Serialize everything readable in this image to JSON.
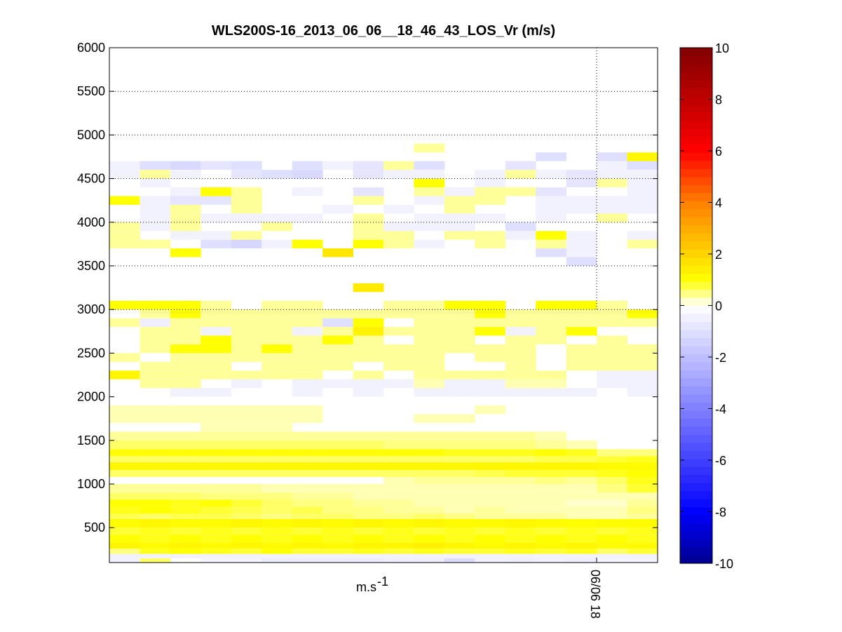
{
  "chart_data": {
    "type": "heatmap",
    "title": "WLS200S-16_2013_06_06__18_46_43_LOS_Vr (m/s)",
    "xlabel": "m.s",
    "xlabel_sup": "-1",
    "ylabel": "",
    "ylim": [
      100,
      6000
    ],
    "yticks": [
      500,
      1000,
      1500,
      2000,
      2500,
      3000,
      3500,
      4000,
      4500,
      5000,
      5500,
      6000
    ],
    "xtick_label": "06/06 18",
    "columns": 18,
    "colorbar": {
      "range": [
        -10,
        10
      ],
      "ticks": [
        -10,
        -8,
        -6,
        -4,
        -2,
        0,
        2,
        4,
        6,
        8,
        10
      ],
      "colors": [
        "#00008f",
        "#0000ff",
        "#ffffff",
        "#ffff00",
        "#ff8000",
        "#ff0000",
        "#800000"
      ]
    },
    "bands": [
      {
        "y0": 100,
        "y1": 150,
        "values": [
          -0.4,
          0.6,
          0,
          -0.3,
          -0.3,
          -0.6,
          -0.6,
          -0.6,
          -0.6,
          -0.5,
          -0.5,
          -1.1,
          -0.4,
          -0.5,
          -0.4,
          -0.5,
          -0.3,
          -0.3
        ]
      },
      {
        "y0": 150,
        "y1": 200,
        "values": [
          -0.4,
          -0.4,
          -0.4,
          -0.4,
          -0.4,
          -0.4,
          -0.4,
          -0.4,
          -0.4,
          -0.4,
          -0.4,
          -0.4,
          -0.4,
          -0.4,
          -0.4,
          -0.4,
          -0.4,
          -0.4
        ]
      },
      {
        "y0": 200,
        "y1": 260,
        "values": [
          0.5,
          0.9,
          1.0,
          0.9,
          0.8,
          1.0,
          0.8,
          0.8,
          0.9,
          0.8,
          0.9,
          0.8,
          0.8,
          0.9,
          0.8,
          0.9,
          0.6,
          0.8
        ]
      },
      {
        "y0": 260,
        "y1": 330,
        "values": [
          1.2,
          1.1,
          1.2,
          1.1,
          1.2,
          1.1,
          1.2,
          1.1,
          1.2,
          1.2,
          1.3,
          1.2,
          1.1,
          1.2,
          1.1,
          1.2,
          1.1,
          1.1
        ]
      },
      {
        "y0": 330,
        "y1": 420,
        "values": [
          1.0,
          0.9,
          1.0,
          0.9,
          1.0,
          0.9,
          1.0,
          0.9,
          1.0,
          0.9,
          1.0,
          0.9,
          1.0,
          0.9,
          1.0,
          0.9,
          1.0,
          0.9
        ]
      },
      {
        "y0": 420,
        "y1": 500,
        "values": [
          0.8,
          0.9,
          0.8,
          0.9,
          0.8,
          0.9,
          0.8,
          0.9,
          0.8,
          0.9,
          0.8,
          0.9,
          0.8,
          0.9,
          0.8,
          0.9,
          0.8,
          0.9
        ]
      },
      {
        "y0": 500,
        "y1": 600,
        "values": [
          1.1,
          1.2,
          1.1,
          1.1,
          1.2,
          1.1,
          1.2,
          1.1,
          1.2,
          1.1,
          1.2,
          1.1,
          1.1,
          1.2,
          1.1,
          1.0,
          1.1,
          1.1
        ]
      },
      {
        "y0": 600,
        "y1": 660,
        "values": [
          0.7,
          0.6,
          0.7,
          0.7,
          0.6,
          0.5,
          0.6,
          0.6,
          0.5,
          0.5,
          0.6,
          0.5,
          0.4,
          0.4,
          0.4,
          0.3,
          0.3,
          0.4
        ]
      },
      {
        "y0": 660,
        "y1": 740,
        "values": [
          0.9,
          1.0,
          0.9,
          0.8,
          0.7,
          0.6,
          0.7,
          0.5,
          0.5,
          0.4,
          0.4,
          0.3,
          0.4,
          0.3,
          0.3,
          0.3,
          0.3,
          0.5
        ]
      },
      {
        "y0": 740,
        "y1": 820,
        "values": [
          1.0,
          1.0,
          0.9,
          1.0,
          0.8,
          0.6,
          0.5,
          0.5,
          0.4,
          0.4,
          0.3,
          0.3,
          0.3,
          0.3,
          0.3,
          0.2,
          0.2,
          0.4
        ]
      },
      {
        "y0": 820,
        "y1": 900,
        "values": [
          0.6,
          0.6,
          0.6,
          0.5,
          0.5,
          0.5,
          0.4,
          0.4,
          0.3,
          0.3,
          0.3,
          0.3,
          0.3,
          0.3,
          0.3,
          0.3,
          0.3,
          0.3
        ]
      },
      {
        "y0": 900,
        "y1": 1000,
        "values": [
          0.4,
          0.4,
          0.4,
          0.4,
          0.4,
          0.3,
          0.3,
          0.3,
          0.3,
          0.3,
          0.3,
          0.3,
          0.3,
          0.3,
          0.3,
          0.3,
          0.5,
          0.8
        ]
      },
      {
        "y0": 1000,
        "y1": 1080,
        "values": [
          0,
          0,
          0,
          0,
          0,
          0,
          0,
          0,
          0,
          0.3,
          0.4,
          0.4,
          0.4,
          0.4,
          0.5,
          0.4,
          0.6,
          0.9
        ]
      },
      {
        "y0": 1080,
        "y1": 1160,
        "values": [
          0.6,
          0.6,
          0.6,
          0.6,
          0.6,
          0.6,
          0.6,
          0.6,
          0.6,
          0.6,
          0.6,
          0.6,
          0.7,
          0.8,
          0.8,
          0.8,
          0.9,
          1.0
        ]
      },
      {
        "y0": 1160,
        "y1": 1250,
        "values": [
          1.2,
          1.2,
          1.2,
          1.2,
          1.2,
          1.2,
          1.2,
          1.2,
          1.2,
          1.2,
          1.2,
          1.2,
          1.2,
          1.2,
          1.2,
          1.2,
          1.1,
          1.1
        ]
      },
      {
        "y0": 1250,
        "y1": 1320,
        "values": [
          0.6,
          0.6,
          0.6,
          0.6,
          0.6,
          0.6,
          0.6,
          0.6,
          0.6,
          0.6,
          0.6,
          0.6,
          0.6,
          0.6,
          0.7,
          0.7,
          0.8,
          0.9
        ]
      },
      {
        "y0": 1320,
        "y1": 1400,
        "values": [
          1.0,
          1.0,
          1.0,
          1.0,
          1.0,
          1.0,
          1.0,
          1.0,
          1.0,
          1.0,
          1.0,
          0.9,
          0.9,
          0.9,
          1.0,
          0.9,
          0.5,
          0.5
        ]
      },
      {
        "y0": 1400,
        "y1": 1500,
        "values": [
          0.6,
          0.6,
          0.6,
          0.6,
          0.6,
          0.6,
          0.6,
          0.6,
          0.6,
          0.5,
          0.5,
          0.5,
          0.5,
          0.5,
          0.4,
          0.3,
          0,
          0
        ]
      },
      {
        "y0": 1500,
        "y1": 1600,
        "values": [
          0.4,
          0.4,
          0.4,
          0.4,
          0.4,
          0.4,
          0.4,
          0.4,
          0.4,
          0.4,
          0.4,
          0.4,
          0.4,
          0.4,
          0.3,
          0,
          0,
          0
        ]
      },
      {
        "y0": 1600,
        "y1": 1700,
        "values": [
          0,
          0,
          0,
          0.3,
          0.3,
          0.3,
          0,
          0,
          0,
          0,
          0,
          0,
          0,
          0,
          0,
          0,
          0,
          0
        ]
      },
      {
        "y0": 1700,
        "y1": 1800,
        "values": [
          0.3,
          0.3,
          0.3,
          0.3,
          0.3,
          0.3,
          0.3,
          0,
          0,
          0,
          0.3,
          0.3,
          0,
          0,
          0,
          0,
          0,
          0
        ]
      },
      {
        "y0": 1800,
        "y1": 1900,
        "values": [
          0.3,
          0.3,
          0.3,
          0.3,
          0.3,
          0.3,
          0.3,
          0,
          0,
          0,
          0,
          0,
          0.3,
          0,
          0,
          0,
          0,
          0
        ]
      },
      {
        "y0": 2000,
        "y1": 2100,
        "values": [
          0,
          0,
          -0.4,
          -0.4,
          0,
          0,
          -0.4,
          0,
          -0.4,
          0,
          -0.4,
          -0.4,
          -0.4,
          -0.4,
          -0.4,
          -0.4,
          0,
          -0.4
        ]
      },
      {
        "y0": 2100,
        "y1": 2200,
        "values": [
          0,
          0.4,
          0.4,
          0,
          -0.4,
          0,
          -0.4,
          -0.4,
          -0.4,
          -0.4,
          0.3,
          -0.4,
          -0.4,
          0.3,
          0.3,
          0,
          -0.4,
          -0.4
        ]
      },
      {
        "y0": 2200,
        "y1": 2300,
        "values": [
          1.2,
          0.4,
          0.4,
          0.4,
          0.4,
          0.4,
          0.4,
          0,
          0.4,
          0,
          0.4,
          0.4,
          0.4,
          0.4,
          0.4,
          0,
          -0.4,
          -0.4
        ]
      },
      {
        "y0": 2300,
        "y1": 2400,
        "values": [
          0,
          0.4,
          0.4,
          0.4,
          0,
          0.4,
          0.4,
          0.4,
          0,
          0.4,
          0.4,
          0,
          0,
          0.4,
          0,
          0.4,
          0.4,
          0.4
        ]
      },
      {
        "y0": 2400,
        "y1": 2500,
        "values": [
          0.4,
          0,
          0.4,
          0.4,
          0.4,
          0.4,
          0.4,
          0.4,
          0.4,
          0.4,
          0.4,
          0,
          0.4,
          0.4,
          0,
          0.4,
          0.4,
          0.4
        ]
      },
      {
        "y0": 2500,
        "y1": 2600,
        "values": [
          0,
          0.4,
          1.0,
          1.0,
          0.4,
          1.0,
          0.4,
          0.4,
          0.4,
          0.4,
          0.4,
          0.4,
          0.4,
          0.4,
          0,
          0.4,
          0.4,
          0.4
        ]
      },
      {
        "y0": 2600,
        "y1": 2700,
        "values": [
          0,
          0.4,
          0.4,
          1.0,
          0.4,
          0.4,
          0.4,
          1.0,
          0.4,
          0,
          0.4,
          0.4,
          0,
          0.4,
          0.4,
          0,
          0.4,
          0
        ]
      },
      {
        "y0": 2700,
        "y1": 2800,
        "values": [
          0,
          0.4,
          0.4,
          -0.4,
          0.4,
          0.4,
          -0.4,
          0.4,
          1.3,
          0.4,
          0.4,
          0.4,
          1.0,
          -0.4,
          0.4,
          1.0,
          0,
          0
        ]
      },
      {
        "y0": 2800,
        "y1": 2900,
        "values": [
          0.4,
          -0.5,
          0.4,
          0.4,
          0.4,
          0.4,
          0.4,
          -1.0,
          1.0,
          0,
          0.4,
          0.4,
          0.4,
          0.4,
          0.4,
          0.4,
          0.4,
          0.4
        ]
      },
      {
        "y0": 2900,
        "y1": 3000,
        "values": [
          0,
          0.4,
          1.0,
          0.4,
          0.4,
          0.4,
          0.4,
          0.4,
          0.4,
          0.4,
          0.4,
          0.4,
          1.0,
          0.4,
          0.4,
          0.4,
          0.4,
          1.0
        ]
      },
      {
        "y0": 3000,
        "y1": 3100,
        "values": [
          1.0,
          1.0,
          1.0,
          0.4,
          0,
          0.4,
          0.4,
          0,
          0,
          0.4,
          0.4,
          1.0,
          1.0,
          0,
          1.0,
          1.0,
          0.4,
          0
        ]
      },
      {
        "y0": 3200,
        "y1": 3300,
        "values": [
          0,
          0,
          0,
          0,
          0,
          0,
          0,
          0,
          1.5,
          0,
          0,
          0,
          0,
          0,
          0,
          0,
          0,
          0
        ]
      },
      {
        "y0": 3500,
        "y1": 3600,
        "values": [
          0,
          0,
          0,
          0,
          0,
          0,
          0,
          0,
          0,
          0,
          0,
          0,
          0,
          0,
          0,
          -1.0,
          0,
          0
        ]
      },
      {
        "y0": 3600,
        "y1": 3700,
        "values": [
          0,
          0,
          1.0,
          0,
          0,
          0,
          0,
          1.6,
          0,
          0,
          0,
          0,
          0,
          0,
          -1.0,
          -0.4,
          0,
          0
        ]
      },
      {
        "y0": 3700,
        "y1": 3800,
        "values": [
          0.4,
          0.4,
          0,
          -1.0,
          -1.3,
          -0.4,
          1.0,
          0,
          1.0,
          0.4,
          -0.4,
          0,
          0.4,
          0,
          0.4,
          -0.4,
          0,
          0.4
        ]
      },
      {
        "y0": 3800,
        "y1": 3900,
        "values": [
          0.4,
          0,
          -0.4,
          -0.4,
          0.4,
          0,
          0,
          0,
          0.4,
          0.4,
          0,
          0.4,
          0.4,
          -0.4,
          1.0,
          -0.4,
          0,
          -0.4
        ]
      },
      {
        "y0": 3900,
        "y1": 4000,
        "values": [
          0.4,
          -0.4,
          0.4,
          0,
          0,
          0.4,
          0,
          0,
          0.4,
          -0.4,
          -0.4,
          -0.4,
          0,
          -1.0,
          0,
          0,
          0,
          0
        ]
      },
      {
        "y0": 4000,
        "y1": 4100,
        "values": [
          0,
          -0.4,
          0.4,
          -0.4,
          -0.4,
          -0.4,
          -0.4,
          0,
          0.4,
          0,
          -0.4,
          -0.4,
          -0.4,
          0,
          -0.4,
          0,
          0.4,
          0
        ]
      },
      {
        "y0": 4100,
        "y1": 4200,
        "values": [
          0,
          -0.4,
          0.4,
          0,
          0.4,
          0,
          0,
          -0.4,
          0,
          -0.4,
          0,
          0.4,
          0,
          0,
          -0.4,
          -0.4,
          -0.4,
          -0.4
        ]
      },
      {
        "y0": 4200,
        "y1": 4300,
        "values": [
          1.0,
          -0.4,
          -0.8,
          -0.8,
          0.4,
          0,
          0,
          0,
          0.4,
          0,
          -0.4,
          0.4,
          0.4,
          0,
          -0.4,
          -0.4,
          -0.4,
          -0.4
        ]
      },
      {
        "y0": 4300,
        "y1": 4400,
        "values": [
          0,
          0,
          -0.4,
          1.0,
          0.4,
          0,
          -0.4,
          0,
          -0.8,
          0,
          0.4,
          -0.4,
          0.4,
          0.4,
          -0.8,
          0,
          0,
          -0.4
        ]
      },
      {
        "y0": 4400,
        "y1": 4500,
        "values": [
          0,
          -0.4,
          0,
          0,
          0,
          0,
          0,
          0,
          0,
          0,
          1.0,
          0,
          -0.4,
          0,
          0,
          -0.8,
          0.4,
          -0.4
        ]
      },
      {
        "y0": 4500,
        "y1": 4600,
        "values": [
          -0.4,
          0.4,
          -0.4,
          0,
          -0.8,
          -1.0,
          -1.2,
          0,
          -0.8,
          -0.4,
          -0.4,
          0,
          -0.4,
          0.4,
          -0.4,
          -0.8,
          -0.4,
          -0.4
        ]
      },
      {
        "y0": 4600,
        "y1": 4700,
        "values": [
          -0.4,
          -1.0,
          -1.2,
          -0.8,
          -1.0,
          0,
          -1.0,
          -0.4,
          -0.8,
          0.4,
          -1.0,
          0,
          0,
          -0.8,
          0,
          0,
          -0.4,
          -1.0
        ]
      },
      {
        "y0": 4700,
        "y1": 4800,
        "values": [
          0,
          0,
          0,
          0,
          0,
          0,
          0,
          0,
          0,
          0,
          0,
          0,
          0,
          0,
          -1.0,
          0,
          -1.0,
          1.2
        ]
      },
      {
        "y0": 4800,
        "y1": 4900,
        "values": [
          0,
          0,
          0,
          0,
          0,
          0,
          0,
          0,
          0,
          0,
          0.4,
          0,
          0,
          0,
          0,
          0,
          0,
          0
        ]
      }
    ]
  }
}
